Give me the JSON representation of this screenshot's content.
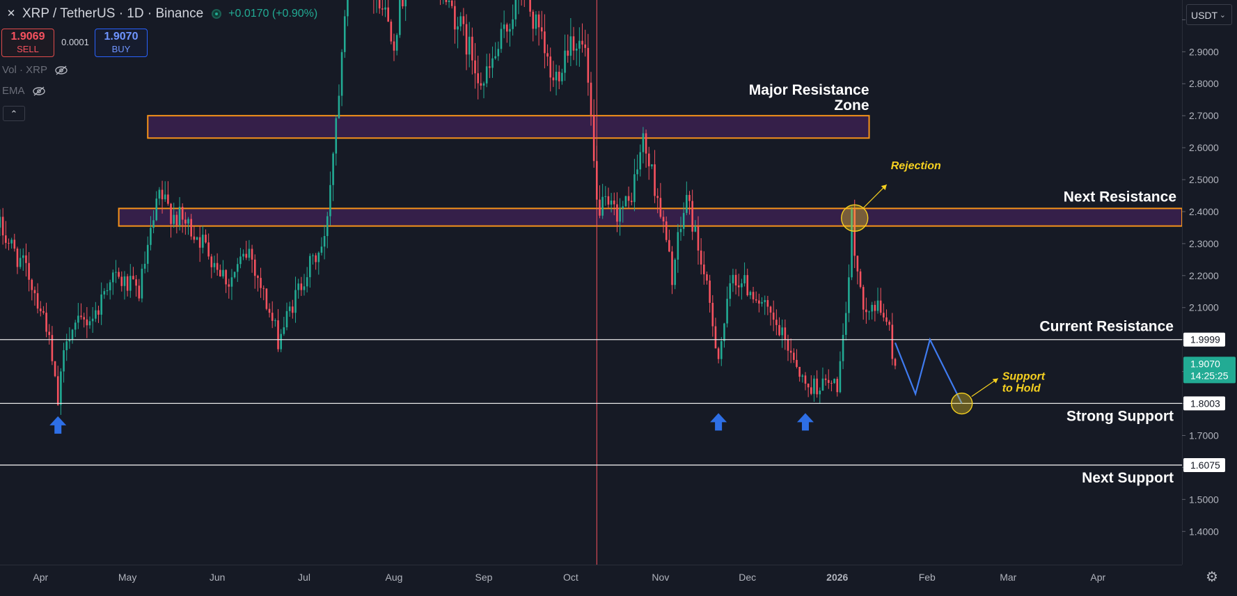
{
  "header": {
    "symbol_title": "XRP / TetherUS · 1D · Binance",
    "change": "+0.0170 (+0.90%)"
  },
  "trade": {
    "sell_price": "1.9069",
    "sell_label": "SELL",
    "spread": "0.0001",
    "buy_price": "1.9070",
    "buy_label": "BUY"
  },
  "indicators": [
    {
      "label": "Vol · XRP",
      "icon": "eye-crossed-icon"
    },
    {
      "label": "EMA",
      "icon": "eye-crossed-icon"
    }
  ],
  "collapse_icon": "chevron-up-icon",
  "currency_button": "USDT",
  "settings_icon": "gear-icon",
  "colors": {
    "background": "#161a25",
    "up": "#22ab94",
    "down": "#f7525f",
    "zone_border": "#f7931a",
    "zone_fill": "#3b2150",
    "annotation_yellow": "#f5d020",
    "arrow_blue": "#2e6fe6",
    "projection_blue": "#3f7bf0",
    "level_line": "#e8e8e8"
  },
  "chart_data": {
    "type": "candlestick",
    "ylim": [
      1.32,
      3.04
    ],
    "y_ticks": [
      "1.4000",
      "1.5000",
      "1.6000",
      "1.7000",
      "1.8000",
      "1.9000",
      "2.0000",
      "2.1000",
      "2.2000",
      "2.3000",
      "2.4000",
      "2.5000",
      "2.6000",
      "2.7000",
      "2.8000",
      "2.9000",
      "3.0000"
    ],
    "x_labels": [
      {
        "label": "Apr",
        "date": "2025-04-01"
      },
      {
        "label": "May",
        "date": "2025-05-01"
      },
      {
        "label": "Jun",
        "date": "2025-06-01"
      },
      {
        "label": "Jul",
        "date": "2025-07-01"
      },
      {
        "label": "Aug",
        "date": "2025-08-01"
      },
      {
        "label": "Sep",
        "date": "2025-09-01"
      },
      {
        "label": "Oct",
        "date": "2025-10-01"
      },
      {
        "label": "Nov",
        "date": "2025-11-01"
      },
      {
        "label": "Dec",
        "date": "2025-12-01"
      },
      {
        "label": "2026",
        "date": "2026-01-01",
        "bold": true
      },
      {
        "label": "Feb",
        "date": "2026-02-01"
      },
      {
        "label": "Mar",
        "date": "2026-03-01"
      },
      {
        "label": "Apr",
        "date": "2026-04-01"
      }
    ],
    "x_domain": [
      "2025-03-18",
      "2026-04-30"
    ],
    "price_path": [
      [
        "2025-03-18",
        2.35
      ],
      [
        "2025-03-28",
        2.2
      ],
      [
        "2025-04-03",
        2.05
      ],
      [
        "2025-04-07",
        1.8
      ],
      [
        "2025-04-10",
        2.02
      ],
      [
        "2025-04-20",
        2.08
      ],
      [
        "2025-04-25",
        2.2
      ],
      [
        "2025-05-05",
        2.15
      ],
      [
        "2025-05-12",
        2.45
      ],
      [
        "2025-05-16",
        2.4
      ],
      [
        "2025-05-25",
        2.33
      ],
      [
        "2025-06-05",
        2.18
      ],
      [
        "2025-06-12",
        2.28
      ],
      [
        "2025-06-22",
        2.0
      ],
      [
        "2025-07-01",
        2.2
      ],
      [
        "2025-07-08",
        2.3
      ],
      [
        "2025-07-13",
        2.8
      ],
      [
        "2025-07-18",
        3.45
      ],
      [
        "2025-07-24",
        3.15
      ],
      [
        "2025-08-01",
        2.95
      ],
      [
        "2025-08-08",
        3.25
      ],
      [
        "2025-08-18",
        3.1
      ],
      [
        "2025-08-25",
        2.95
      ],
      [
        "2025-09-01",
        2.8
      ],
      [
        "2025-09-08",
        2.95
      ],
      [
        "2025-09-14",
        3.1
      ],
      [
        "2025-09-20",
        2.95
      ],
      [
        "2025-09-25",
        2.8
      ],
      [
        "2025-10-01",
        2.95
      ],
      [
        "2025-10-06",
        2.9
      ],
      [
        "2025-10-10",
        2.42
      ],
      [
        "2025-10-16",
        2.4
      ],
      [
        "2025-10-21",
        2.42
      ],
      [
        "2025-10-26",
        2.62
      ],
      [
        "2025-10-31",
        2.45
      ],
      [
        "2025-11-05",
        2.2
      ],
      [
        "2025-11-10",
        2.45
      ],
      [
        "2025-11-15",
        2.25
      ],
      [
        "2025-11-21",
        1.95
      ],
      [
        "2025-11-26",
        2.2
      ],
      [
        "2025-12-03",
        2.15
      ],
      [
        "2025-12-10",
        2.05
      ],
      [
        "2025-12-17",
        1.95
      ],
      [
        "2025-12-21",
        1.85
      ],
      [
        "2025-12-26",
        1.86
      ],
      [
        "2026-01-01",
        1.86
      ],
      [
        "2026-01-04",
        2.05
      ],
      [
        "2026-01-06",
        2.38
      ],
      [
        "2026-01-09",
        2.13
      ],
      [
        "2026-01-14",
        2.1
      ],
      [
        "2026-01-18",
        2.07
      ],
      [
        "2026-01-21",
        1.91
      ]
    ],
    "projection": [
      [
        "2026-01-21",
        1.99
      ],
      [
        "2026-01-28",
        1.83
      ],
      [
        "2026-02-02",
        2.0
      ],
      [
        "2026-02-13",
        1.8
      ]
    ],
    "zones": [
      {
        "name": "Major Resistance Zone",
        "from": "2025-05-08",
        "to": "2026-01-12",
        "low": 2.63,
        "high": 2.7
      },
      {
        "name": "Next Resistance",
        "from": "2025-04-28",
        "to": "2026-04-30",
        "low": 2.355,
        "high": 2.41
      }
    ],
    "levels": [
      {
        "price": 1.9999,
        "label": "Current Resistance",
        "tag": "1.9999"
      },
      {
        "price": 1.8003,
        "label": "Strong Support",
        "tag": "1.8003"
      },
      {
        "price": 1.6075,
        "label": "Next Support",
        "tag": "1.6075"
      }
    ],
    "annotations": {
      "major_resistance": [
        "Major Resistance",
        "Zone"
      ],
      "next_resistance": "Next Resistance",
      "rejection": "Rejection",
      "support_hold": [
        "Support",
        "to Hold"
      ]
    },
    "rejection_point": {
      "date": "2026-01-07",
      "price": 2.38
    },
    "support_point": {
      "date": "2026-02-13",
      "price": 1.8
    },
    "support_arrows": [
      {
        "date": "2025-04-07",
        "price": 1.76
      },
      {
        "date": "2025-11-21",
        "price": 1.77
      },
      {
        "date": "2025-12-21",
        "price": 1.77
      }
    ],
    "vertical_line_date": "2025-10-10",
    "last_price": {
      "value": "1.9070",
      "countdown": "14:25:25"
    }
  }
}
